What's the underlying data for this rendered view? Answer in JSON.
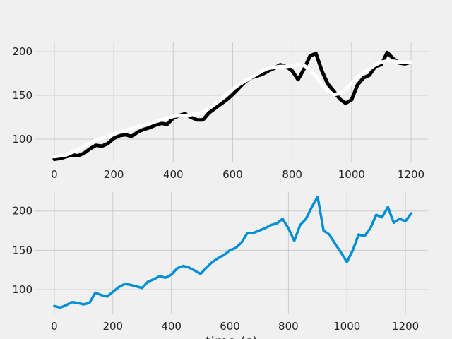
{
  "chart_data": [
    {
      "type": "line",
      "grid": true,
      "x": [
        0,
        20,
        40,
        60,
        80,
        100,
        120,
        140,
        160,
        180,
        200,
        220,
        240,
        260,
        280,
        300,
        320,
        340,
        360,
        380,
        400,
        420,
        440,
        460,
        480,
        500,
        520,
        540,
        560,
        580,
        600,
        620,
        640,
        660,
        680,
        700,
        720,
        740,
        760,
        780,
        800,
        820,
        840,
        860,
        880,
        900,
        920,
        940,
        960,
        980,
        1000,
        1020,
        1040,
        1060,
        1080,
        1100,
        1120,
        1140,
        1160,
        1180,
        1200
      ],
      "series": [
        {
          "color": "#000000",
          "values": [
            77,
            78,
            80,
            82,
            81,
            84,
            89,
            93,
            92,
            95,
            101,
            104,
            105,
            103,
            108,
            111,
            113,
            116,
            118,
            117,
            124,
            127,
            129,
            125,
            122,
            122,
            130,
            135,
            140,
            145,
            151,
            158,
            165,
            170,
            172,
            174,
            178,
            181,
            185,
            183,
            178,
            168,
            180,
            195,
            198,
            178,
            163,
            155,
            146,
            141,
            145,
            162,
            170,
            173,
            183,
            185,
            199,
            192,
            187,
            186,
            188
          ]
        },
        {
          "color": "#ffffff",
          "values": [
            80,
            81,
            82,
            85,
            88,
            92,
            96,
            99,
            101,
            103,
            106,
            108,
            110,
            112,
            114,
            116,
            118,
            120,
            122,
            124,
            126,
            127,
            127,
            128,
            129,
            131,
            135,
            140,
            145,
            151,
            157,
            162,
            166,
            170,
            174,
            178,
            181,
            182,
            183,
            183,
            184,
            185,
            184,
            180,
            172,
            162,
            155,
            151,
            152,
            157,
            164,
            171,
            176,
            180,
            185,
            188,
            189,
            189,
            188,
            188,
            188
          ]
        }
      ],
      "xlim": [
        -64,
        1257
      ],
      "xticks": [
        0,
        200,
        400,
        600,
        800,
        1000,
        1200
      ],
      "ylim": [
        73.4,
        210.5
      ],
      "yticks": [
        100,
        150,
        200
      ]
    },
    {
      "type": "line",
      "grid": true,
      "xlabel": "time (s)",
      "x": [
        0,
        20,
        40,
        60,
        80,
        100,
        120,
        140,
        160,
        180,
        200,
        220,
        240,
        260,
        280,
        300,
        320,
        340,
        360,
        380,
        400,
        420,
        440,
        460,
        480,
        500,
        520,
        540,
        560,
        580,
        600,
        620,
        640,
        660,
        680,
        700,
        720,
        740,
        760,
        780,
        800,
        820,
        840,
        860,
        880,
        900,
        920,
        940,
        960,
        980,
        1000,
        1020,
        1040,
        1060,
        1080,
        1100,
        1120,
        1140,
        1160,
        1180,
        1200,
        1220
      ],
      "series": [
        {
          "color": "#008fd5",
          "values": [
            79,
            77,
            80,
            84,
            83,
            81,
            83,
            96,
            93,
            91,
            97,
            103,
            107,
            106,
            104,
            102,
            110,
            113,
            117,
            115,
            119,
            127,
            130,
            128,
            124,
            120,
            128,
            135,
            140,
            144,
            150,
            153,
            160,
            172,
            172,
            175,
            178,
            182,
            184,
            190,
            178,
            162,
            182,
            190,
            205,
            218,
            175,
            170,
            158,
            147,
            135,
            150,
            170,
            168,
            178,
            195,
            192,
            205,
            185,
            190,
            187,
            197
          ]
        }
      ],
      "xlim": [
        -65,
        1277
      ],
      "xticks": [
        0,
        200,
        400,
        600,
        800,
        1000,
        1200
      ],
      "ylim": [
        68.5,
        224
      ],
      "yticks": [
        100,
        150,
        200
      ]
    }
  ]
}
